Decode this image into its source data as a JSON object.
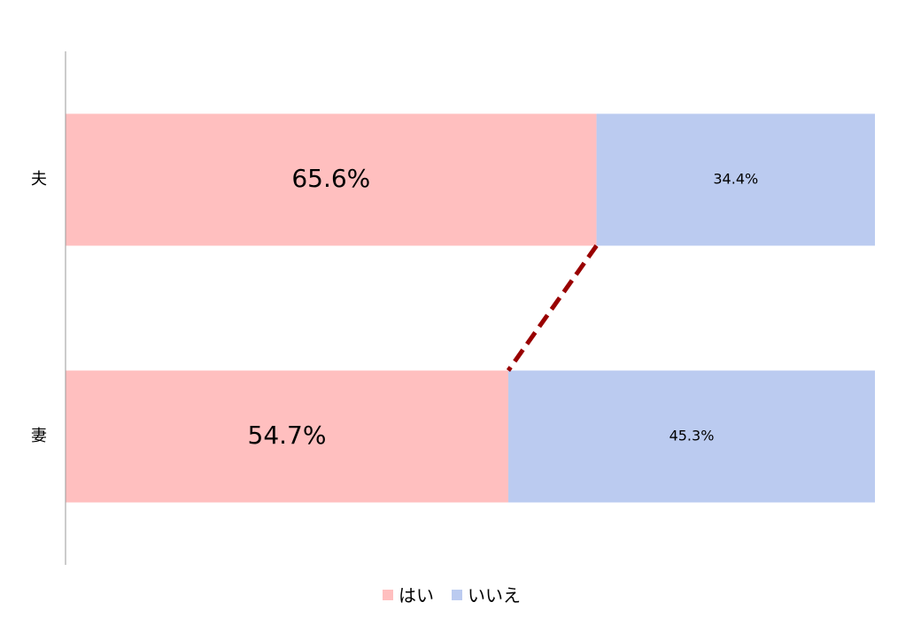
{
  "chart_data": {
    "type": "stacked-bar-horizontal",
    "categories": [
      "夫",
      "妻"
    ],
    "series": [
      {
        "name": "はい",
        "color": "#ffbfbf",
        "values": [
          65.6,
          54.7
        ],
        "value_labels": [
          "65.6%",
          "54.7%"
        ]
      },
      {
        "name": "いいえ",
        "color": "#bbcbf0",
        "values": [
          34.4,
          45.3
        ],
        "value_labels": [
          "34.4%",
          "45.3%"
        ]
      }
    ],
    "xlim": [
      0,
      100
    ],
    "series_line_color": "#990000",
    "legend": "bottom"
  }
}
